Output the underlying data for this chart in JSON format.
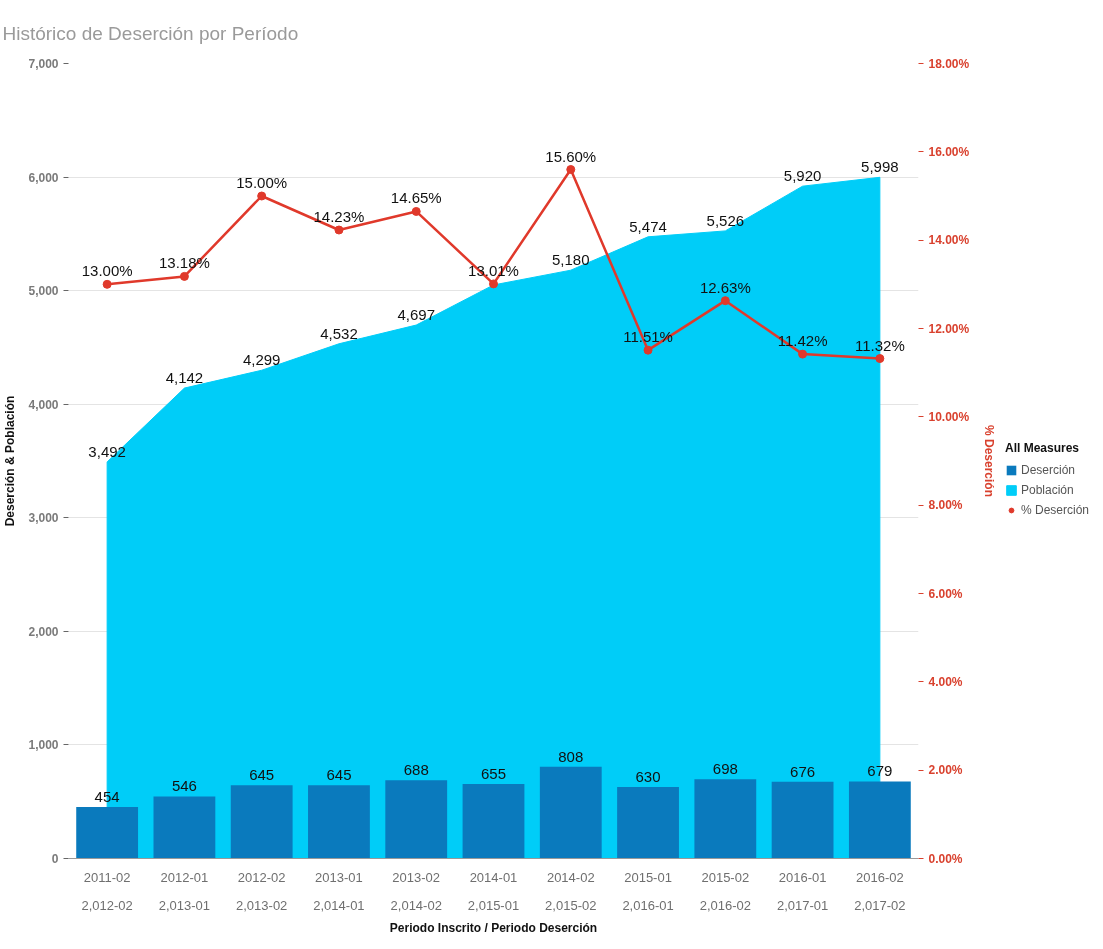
{
  "chart_data": {
    "type": "bar",
    "title": "Histórico de Deserción por Período",
    "xlabel": "Periodo Inscrito / Periodo Deserción",
    "ylabel": "Deserción & Población",
    "y2label": "% Deserción",
    "legend_title": "All Measures",
    "categories": [
      "2011-02\n2,012-02",
      "2012-01\n2,013-01",
      "2012-02\n2,013-02",
      "2013-01\n2,014-01",
      "2013-02\n2,014-02",
      "2014-01\n2,015-01",
      "2014-02\n2,015-02",
      "2015-01\n2,016-01",
      "2015-02\n2,016-02",
      "2016-01\n2,017-01",
      "2016-02\n2,017-02"
    ],
    "series": [
      {
        "name": "Deserción",
        "color": "#0a7abd",
        "values": [
          454,
          546,
          645,
          645,
          688,
          655,
          808,
          630,
          698,
          676,
          679
        ],
        "value_labels": [
          "454",
          "546",
          "645",
          "645",
          "688",
          "655",
          "808",
          "630",
          "698",
          "676",
          "679"
        ]
      },
      {
        "name": "Población",
        "type": "area",
        "color": "#00cdf8",
        "values": [
          3492,
          4142,
          4299,
          4532,
          4697,
          5050,
          5180,
          5474,
          5526,
          5920,
          5998
        ],
        "value_labels": [
          "3,492",
          "4,142",
          "4,299",
          "4,532",
          "4,697",
          null,
          "5,180",
          "5,474",
          "5,526",
          "5,920",
          "5,998"
        ]
      },
      {
        "name": "% Deserción",
        "type": "line",
        "axis": "y2",
        "marker": "circle",
        "color": "#e0392b",
        "values": [
          13.0,
          13.18,
          15.0,
          14.23,
          14.65,
          13.01,
          15.6,
          11.51,
          12.63,
          11.42,
          11.32
        ],
        "value_labels": [
          "13.00%",
          "13.18%",
          "15.00%",
          "14.23%",
          "14.65%",
          "13.01%",
          "15.60%",
          "11.51%",
          "12.63%",
          "11.42%",
          "11.32%"
        ]
      }
    ],
    "ylim": [
      0,
      7000
    ],
    "yticks": [
      0,
      {
        "value": 1000,
        "label": "1,000"
      },
      {
        "value": 2000,
        "label": "2,000"
      },
      {
        "value": 3000,
        "label": "3,000"
      },
      {
        "value": 4000,
        "label": "4,000"
      },
      {
        "value": 5000,
        "label": "5,000"
      },
      {
        "value": 6000,
        "label": "6,000"
      },
      {
        "value": 7000,
        "label": "7,000"
      }
    ],
    "y2lim": [
      0,
      18
    ],
    "y2ticks": [
      {
        "value": 0,
        "label": "0.00%"
      },
      {
        "value": 2,
        "label": "2.00%"
      },
      {
        "value": 4,
        "label": "4.00%"
      },
      {
        "value": 6,
        "label": "6.00%"
      },
      {
        "value": 8,
        "label": "8.00%"
      },
      {
        "value": 10,
        "label": "10.00%"
      },
      {
        "value": 12,
        "label": "12.00%"
      },
      {
        "value": 14,
        "label": "14.00%"
      },
      {
        "value": 16,
        "label": "16.00%"
      },
      {
        "value": 18,
        "label": "18.00%"
      }
    ],
    "grid": "y",
    "legend": "right"
  }
}
